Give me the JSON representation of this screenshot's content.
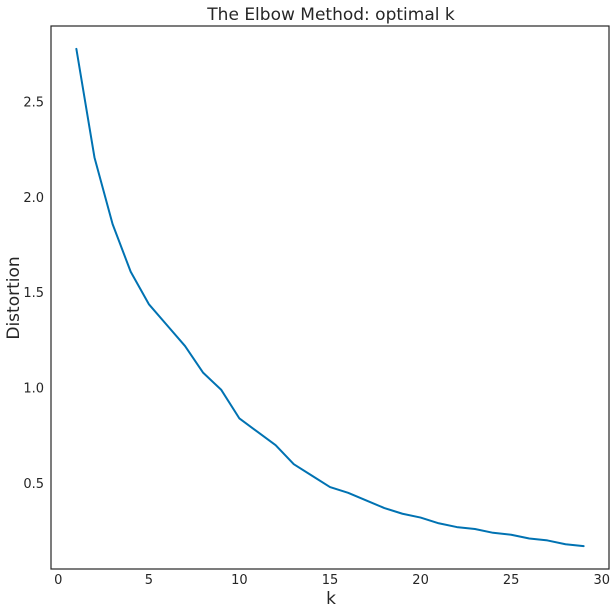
{
  "chart_data": {
    "type": "line",
    "title": "The Elbow Method: optimal k",
    "xlabel": "k",
    "ylabel": "Distortion",
    "xlim": [
      -0.4,
      30.4
    ],
    "ylim": [
      0.05,
      2.9
    ],
    "grid": false,
    "legend": "none",
    "x_ticks": [
      0,
      5,
      10,
      15,
      20,
      25,
      30
    ],
    "x_tick_labels": [
      "0",
      "5",
      "10",
      "15",
      "20",
      "25",
      "30"
    ],
    "y_ticks": [
      0.5,
      1.0,
      1.5,
      2.0,
      2.5
    ],
    "y_tick_labels": [
      "0.5",
      "1.0",
      "1.5",
      "2.0",
      "2.5"
    ],
    "series": [
      {
        "color": "#0072B2",
        "x": [
          1,
          2,
          3,
          4,
          5,
          6,
          7,
          8,
          9,
          10,
          11,
          12,
          13,
          14,
          15,
          16,
          17,
          18,
          19,
          20,
          21,
          22,
          23,
          24,
          25,
          26,
          27,
          28,
          29
        ],
        "y": [
          2.78,
          2.21,
          1.86,
          1.61,
          1.44,
          1.33,
          1.22,
          1.08,
          0.99,
          0.84,
          0.77,
          0.7,
          0.6,
          0.54,
          0.48,
          0.45,
          0.41,
          0.37,
          0.34,
          0.32,
          0.29,
          0.27,
          0.26,
          0.24,
          0.23,
          0.21,
          0.2,
          0.18,
          0.17
        ]
      }
    ]
  }
}
